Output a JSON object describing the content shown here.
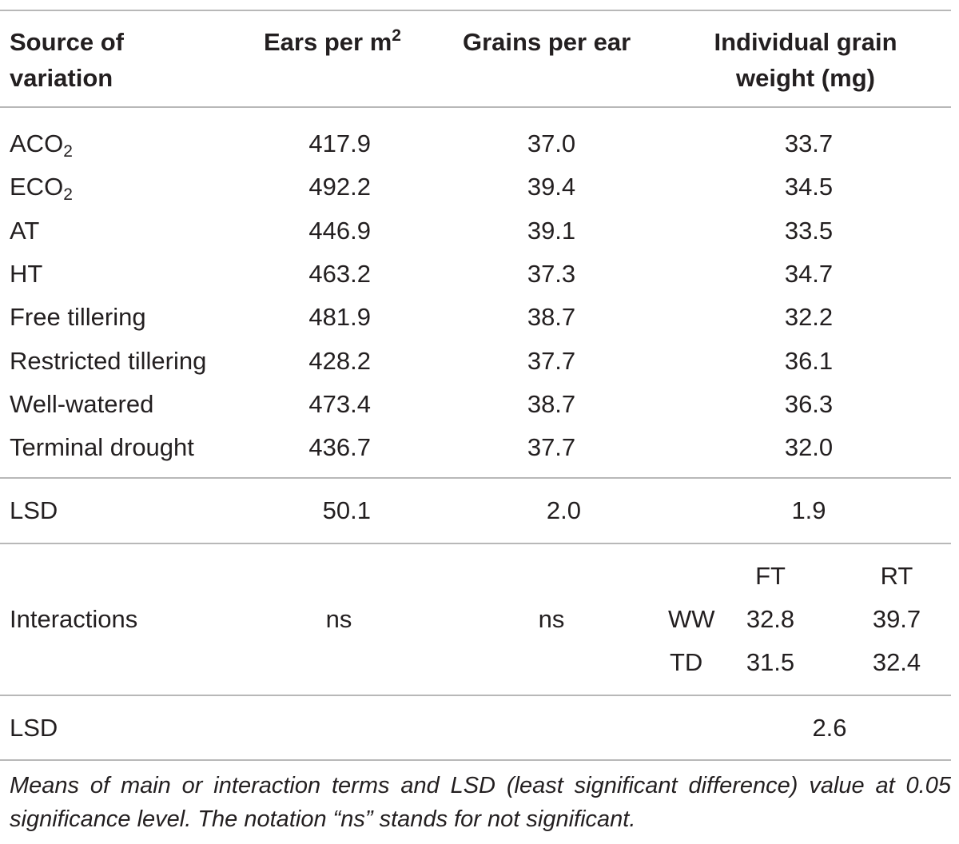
{
  "table": {
    "headers": {
      "source_line1": "Source of",
      "source_line2": "variation",
      "ears_text": "Ears per m",
      "ears_sup": "2",
      "grains": "Grains per ear",
      "weight_line1": "Individual grain",
      "weight_line2": "weight (mg)"
    },
    "rows": [
      {
        "label": "ACO",
        "sub": "2",
        "ears": "417.9",
        "grains": "37.0",
        "weight": "33.7"
      },
      {
        "label": "ECO",
        "sub": "2",
        "ears": "492.2",
        "grains": "39.4",
        "weight": "34.5"
      },
      {
        "label": "AT",
        "sub": "",
        "ears": "446.9",
        "grains": "39.1",
        "weight": "33.5"
      },
      {
        "label": "HT",
        "sub": "",
        "ears": "463.2",
        "grains": "37.3",
        "weight": "34.7"
      },
      {
        "label": "Free tillering",
        "sub": "",
        "ears": "481.9",
        "grains": "38.7",
        "weight": "32.2"
      },
      {
        "label": "Restricted tillering",
        "sub": "",
        "ears": "428.2",
        "grains": "37.7",
        "weight": "36.1"
      },
      {
        "label": "Well-watered",
        "sub": "",
        "ears": "473.4",
        "grains": "38.7",
        "weight": "36.3"
      },
      {
        "label": "Terminal drought",
        "sub": "",
        "ears": "436.7",
        "grains": "37.7",
        "weight": "32.0"
      }
    ],
    "lsd1": {
      "label": "LSD",
      "ears": "50.1",
      "grains": "2.0",
      "weight": "1.9"
    },
    "interactions": {
      "label": "Interactions",
      "ears": "ns",
      "grains": "ns",
      "col_ft": "FT",
      "col_rt": "RT",
      "row_ww": "WW",
      "row_td": "TD",
      "ww_ft": "32.8",
      "ww_rt": "39.7",
      "td_ft": "31.5",
      "td_rt": "32.4"
    },
    "lsd2": {
      "label": "LSD",
      "weight": "2.6"
    },
    "footnote": "Means of main or interaction terms and LSD (least significant difference) value at 0.05 significance level. The notation “ns” stands for not significant."
  }
}
